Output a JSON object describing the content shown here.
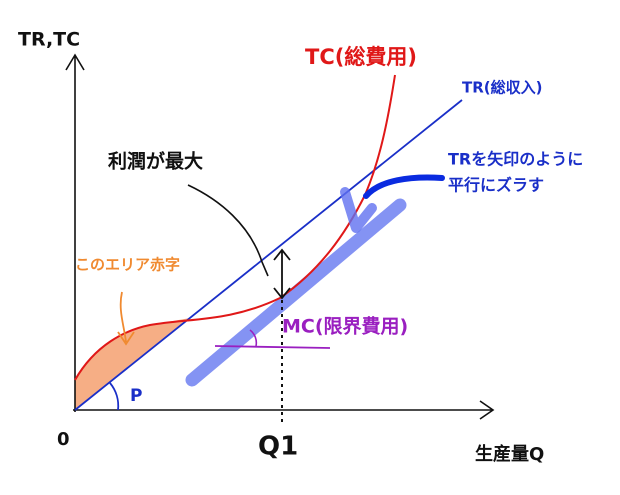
{
  "axes": {
    "y_label": "TR,TC",
    "x_label": "生産量Q",
    "origin": "0",
    "q1": "Q1"
  },
  "curves": {
    "tc": "TC(総費用)",
    "tr": "TR(総収入)",
    "mc": "MC(限界費用)",
    "p": "P"
  },
  "notes": {
    "shift_line1": "TRを矢印のように",
    "shift_line2": "平行にズラす",
    "max_profit": "利潤が最大",
    "loss_area": "このエリア赤字"
  }
}
